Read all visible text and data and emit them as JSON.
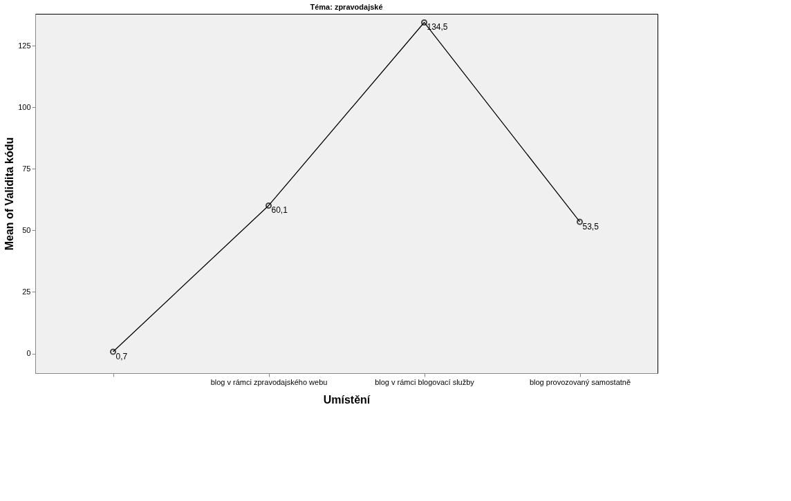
{
  "chart_data": {
    "type": "line",
    "title": "Téma: zpravodajské",
    "xlabel": "Umístění",
    "ylabel": "Mean of Validita kódu",
    "categories": [
      null,
      "blog v rámci zpravodajského webu",
      "blog v rámci blogovací služby",
      "blog provozovaný samostatně"
    ],
    "series": [
      {
        "color": "#000000",
        "values": [
          0.7,
          60.1,
          134.5,
          53.5
        ],
        "value_labels": [
          "0,7",
          "60,1",
          "134,5",
          "53,5"
        ]
      }
    ],
    "ylim": [
      -8,
      138
    ],
    "yticks": [
      0,
      25,
      50,
      75,
      100,
      125
    ],
    "marker": "circle",
    "line_style": "solid",
    "grid": false
  }
}
